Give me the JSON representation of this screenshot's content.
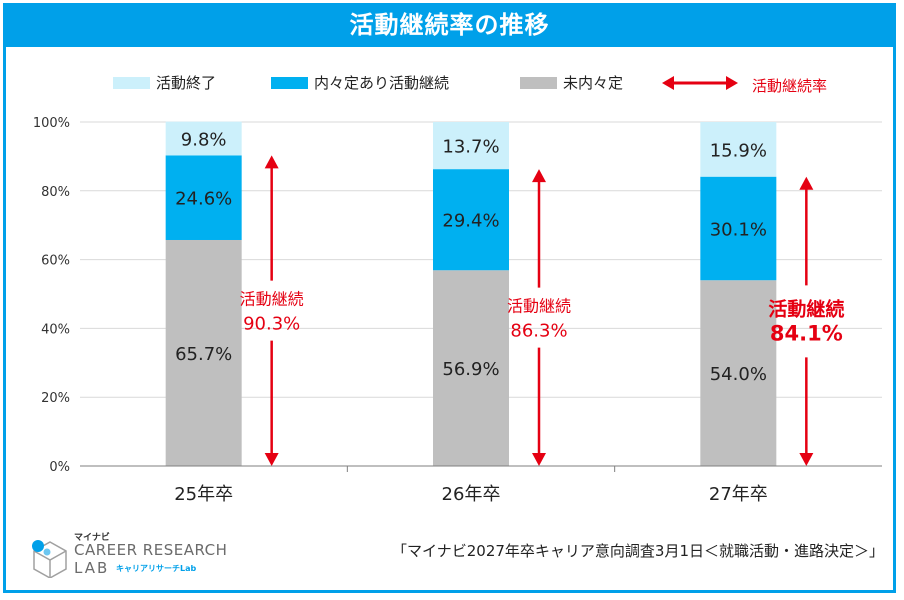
{
  "title": "活動継続率の推移",
  "legend": {
    "ended": "活動終了",
    "naitei_continuing": "内々定あり活動継続",
    "no_naitei": "未内々定",
    "continuation_rate": "活動継続率"
  },
  "colors": {
    "ended": "#ccf0fb",
    "naitei_continuing": "#00b0f0",
    "no_naitei": "#bfbfbf",
    "arrow": "#e50012",
    "title_bg": "#00a0e9"
  },
  "chart_data": {
    "type": "bar",
    "stacked": true,
    "title": "活動継続率の推移",
    "categories": [
      "25年卒",
      "26年卒",
      "27年卒"
    ],
    "series": [
      {
        "name": "未内々定",
        "values": [
          65.7,
          56.9,
          54.0
        ],
        "labels": [
          "65.7%",
          "56.9%",
          "54.0%"
        ]
      },
      {
        "name": "内々定あり活動継続",
        "values": [
          24.6,
          29.4,
          30.1
        ],
        "labels": [
          "24.6%",
          "29.4%",
          "30.1%"
        ]
      },
      {
        "name": "活動終了",
        "values": [
          9.8,
          13.7,
          15.9
        ],
        "labels": [
          "9.8%",
          "13.7%",
          "15.9%"
        ]
      }
    ],
    "continuation": {
      "label": "活動継続",
      "values": [
        90.3,
        86.3,
        84.1
      ],
      "labels": [
        "90.3%",
        "86.3%",
        "84.1%"
      ]
    },
    "ylim": [
      0,
      100
    ],
    "yticks": [
      "0%",
      "20%",
      "40%",
      "60%",
      "80%",
      "100%"
    ],
    "grid": true,
    "legend_position": "top"
  },
  "logo": {
    "brand": "マイナビ",
    "line1": "CAREER RESEARCH",
    "line2": "LAB",
    "line3": "キャリアリサーチLab"
  },
  "source": "「マイナビ2027年卒キャリア意向調査3月1日＜就職活動・進路決定＞」"
}
